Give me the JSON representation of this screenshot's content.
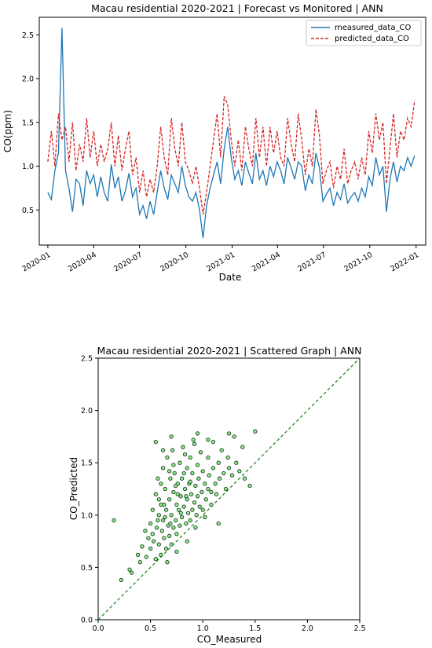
{
  "chart_data": [
    {
      "type": "line",
      "title": "Macau residential 2020-2021 | Forecast vs Monitored | ANN",
      "xlabel": "Date",
      "ylabel": "CO(ppm)",
      "x_range": [
        "2019-12-15",
        "2022-01-20"
      ],
      "ylim": [
        0.1,
        2.7
      ],
      "x_ticks": [
        "2020-01",
        "2020-04",
        "2020-07",
        "2020-10",
        "2021-01",
        "2021-04",
        "2021-07",
        "2021-10",
        "2022-01"
      ],
      "y_ticks": [
        "0.5",
        "1.0",
        "1.5",
        "2.0",
        "2.5"
      ],
      "y_tick_values": [
        0.5,
        1.0,
        1.5,
        2.0,
        2.5
      ],
      "legend_position": "top-right",
      "grid": false,
      "series": [
        {
          "name": "measured_data_CO",
          "color": "#1f77b4",
          "style": "solid",
          "x": [
            "2020-01-01",
            "2020-01-08",
            "2020-01-15",
            "2020-01-22",
            "2020-01-29",
            "2020-02-05",
            "2020-02-12",
            "2020-02-19",
            "2020-02-26",
            "2020-03-04",
            "2020-03-11",
            "2020-03-18",
            "2020-03-25",
            "2020-04-01",
            "2020-04-08",
            "2020-04-15",
            "2020-04-22",
            "2020-04-29",
            "2020-05-06",
            "2020-05-13",
            "2020-05-20",
            "2020-05-27",
            "2020-06-03",
            "2020-06-10",
            "2020-06-17",
            "2020-06-24",
            "2020-07-01",
            "2020-07-08",
            "2020-07-15",
            "2020-07-22",
            "2020-07-29",
            "2020-08-05",
            "2020-08-12",
            "2020-08-19",
            "2020-08-26",
            "2020-09-02",
            "2020-09-09",
            "2020-09-16",
            "2020-09-23",
            "2020-09-30",
            "2020-10-07",
            "2020-10-14",
            "2020-10-21",
            "2020-10-28",
            "2020-11-04",
            "2020-11-11",
            "2020-11-18",
            "2020-11-25",
            "2020-12-02",
            "2020-12-09",
            "2020-12-16",
            "2020-12-23",
            "2020-12-30",
            "2021-01-06",
            "2021-01-13",
            "2021-01-20",
            "2021-01-27",
            "2021-02-03",
            "2021-02-10",
            "2021-02-17",
            "2021-02-24",
            "2021-03-03",
            "2021-03-10",
            "2021-03-17",
            "2021-03-24",
            "2021-03-31",
            "2021-04-07",
            "2021-04-14",
            "2021-04-21",
            "2021-04-28",
            "2021-05-05",
            "2021-05-12",
            "2021-05-19",
            "2021-05-26",
            "2021-06-02",
            "2021-06-09",
            "2021-06-16",
            "2021-06-23",
            "2021-06-30",
            "2021-07-07",
            "2021-07-14",
            "2021-07-21",
            "2021-07-28",
            "2021-08-04",
            "2021-08-11",
            "2021-08-18",
            "2021-08-25",
            "2021-09-01",
            "2021-09-08",
            "2021-09-15",
            "2021-09-22",
            "2021-09-29",
            "2021-10-06",
            "2021-10-13",
            "2021-10-20",
            "2021-10-27",
            "2021-11-03",
            "2021-11-10",
            "2021-11-17",
            "2021-11-24",
            "2021-12-01",
            "2021-12-08",
            "2021-12-15",
            "2021-12-22",
            "2021-12-29"
          ],
          "y": [
            0.7,
            0.62,
            0.95,
            1.15,
            2.58,
            0.95,
            0.75,
            0.48,
            0.85,
            0.8,
            0.55,
            0.95,
            0.8,
            0.9,
            0.65,
            0.88,
            0.7,
            0.6,
            1.02,
            0.75,
            0.88,
            0.6,
            0.72,
            0.92,
            0.65,
            0.75,
            0.45,
            0.55,
            0.4,
            0.6,
            0.45,
            0.7,
            0.95,
            0.75,
            0.62,
            0.9,
            0.8,
            0.7,
            1.0,
            0.78,
            0.65,
            0.6,
            0.7,
            0.5,
            0.18,
            0.55,
            0.75,
            0.9,
            1.05,
            0.8,
            1.2,
            1.45,
            1.1,
            0.85,
            0.95,
            0.78,
            1.05,
            0.92,
            0.8,
            1.15,
            0.85,
            0.95,
            0.78,
            1.0,
            0.88,
            1.05,
            0.95,
            0.8,
            1.1,
            0.98,
            0.85,
            1.05,
            1.0,
            0.72,
            0.9,
            0.8,
            1.15,
            0.98,
            0.6,
            0.68,
            0.75,
            0.55,
            0.7,
            0.62,
            0.8,
            0.58,
            0.65,
            0.7,
            0.6,
            0.75,
            0.65,
            0.88,
            0.78,
            1.1,
            0.9,
            1.0,
            0.48,
            0.85,
            1.05,
            0.82,
            1.0,
            0.95,
            1.1,
            1.0,
            1.12
          ]
        },
        {
          "name": "predicted_data_CO",
          "color": "#d62728",
          "style": "dashed",
          "x": [
            "2020-01-01",
            "2020-01-08",
            "2020-01-15",
            "2020-01-22",
            "2020-01-29",
            "2020-02-05",
            "2020-02-12",
            "2020-02-19",
            "2020-02-26",
            "2020-03-04",
            "2020-03-11",
            "2020-03-18",
            "2020-03-25",
            "2020-04-01",
            "2020-04-08",
            "2020-04-15",
            "2020-04-22",
            "2020-04-29",
            "2020-05-06",
            "2020-05-13",
            "2020-05-20",
            "2020-05-27",
            "2020-06-03",
            "2020-06-10",
            "2020-06-17",
            "2020-06-24",
            "2020-07-01",
            "2020-07-08",
            "2020-07-15",
            "2020-07-22",
            "2020-07-29",
            "2020-08-05",
            "2020-08-12",
            "2020-08-19",
            "2020-08-26",
            "2020-09-02",
            "2020-09-09",
            "2020-09-16",
            "2020-09-23",
            "2020-09-30",
            "2020-10-07",
            "2020-10-14",
            "2020-10-21",
            "2020-10-28",
            "2020-11-04",
            "2020-11-11",
            "2020-11-18",
            "2020-11-25",
            "2020-12-02",
            "2020-12-09",
            "2020-12-16",
            "2020-12-23",
            "2020-12-30",
            "2021-01-06",
            "2021-01-13",
            "2021-01-20",
            "2021-01-27",
            "2021-02-03",
            "2021-02-10",
            "2021-02-17",
            "2021-02-24",
            "2021-03-03",
            "2021-03-10",
            "2021-03-17",
            "2021-03-24",
            "2021-03-31",
            "2021-04-07",
            "2021-04-14",
            "2021-04-21",
            "2021-04-28",
            "2021-05-05",
            "2021-05-12",
            "2021-05-19",
            "2021-05-26",
            "2021-06-02",
            "2021-06-09",
            "2021-06-16",
            "2021-06-23",
            "2021-06-30",
            "2021-07-07",
            "2021-07-14",
            "2021-07-21",
            "2021-07-28",
            "2021-08-04",
            "2021-08-11",
            "2021-08-18",
            "2021-08-25",
            "2021-09-01",
            "2021-09-08",
            "2021-09-15",
            "2021-09-22",
            "2021-09-29",
            "2021-10-06",
            "2021-10-13",
            "2021-10-20",
            "2021-10-27",
            "2021-11-03",
            "2021-11-10",
            "2021-11-17",
            "2021-11-24",
            "2021-12-01",
            "2021-12-08",
            "2021-12-15",
            "2021-12-22",
            "2021-12-29"
          ],
          "y": [
            1.05,
            1.4,
            1.0,
            1.6,
            1.3,
            1.45,
            1.05,
            1.5,
            0.95,
            1.25,
            1.05,
            1.55,
            1.1,
            1.4,
            1.0,
            1.25,
            1.05,
            1.2,
            1.5,
            1.0,
            1.35,
            0.95,
            1.2,
            1.4,
            0.9,
            1.1,
            0.7,
            0.95,
            0.65,
            0.85,
            0.7,
            1.0,
            1.45,
            1.1,
            0.9,
            1.55,
            1.2,
            1.0,
            1.5,
            1.05,
            0.95,
            0.8,
            1.0,
            0.75,
            0.45,
            0.7,
            1.0,
            1.3,
            1.6,
            1.1,
            1.8,
            1.7,
            1.3,
            1.0,
            1.3,
            0.95,
            1.45,
            1.2,
            1.0,
            1.55,
            1.1,
            1.45,
            1.0,
            1.45,
            1.15,
            1.4,
            1.1,
            1.0,
            1.55,
            1.25,
            1.05,
            1.6,
            1.3,
            0.9,
            1.2,
            1.0,
            1.65,
            1.35,
            0.8,
            0.95,
            1.05,
            0.75,
            1.0,
            0.85,
            1.2,
            0.8,
            0.95,
            1.05,
            0.85,
            1.1,
            0.9,
            1.4,
            1.15,
            1.6,
            1.3,
            1.5,
            0.8,
            1.2,
            1.6,
            1.1,
            1.4,
            1.3,
            1.55,
            1.45,
            1.75
          ]
        }
      ]
    },
    {
      "type": "scatter",
      "title": "Macau residential 2020-2021 | Scattered Graph | ANN",
      "xlabel": "CO_Measured",
      "ylabel": "CO_Predicted",
      "xlim": [
        0.0,
        2.5
      ],
      "ylim": [
        0.0,
        2.5
      ],
      "x_ticks": [
        "0.0",
        "0.5",
        "1.0",
        "1.5",
        "2.0",
        "2.5"
      ],
      "y_ticks": [
        "0.0",
        "0.5",
        "1.0",
        "1.5",
        "2.0",
        "2.5"
      ],
      "tick_values": [
        0,
        0.5,
        1.0,
        1.5,
        2.0,
        2.5
      ],
      "grid": false,
      "reference_line": {
        "from": [
          0,
          0
        ],
        "to": [
          2.5,
          2.5
        ],
        "color": "#228b22",
        "style": "dashed"
      },
      "point_color": "#90ee90",
      "point_edge": "#1a3d1a",
      "points": [
        [
          0.15,
          0.95
        ],
        [
          0.22,
          0.38
        ],
        [
          0.3,
          0.48
        ],
        [
          0.32,
          0.45
        ],
        [
          0.38,
          0.62
        ],
        [
          0.4,
          0.55
        ],
        [
          0.42,
          0.7
        ],
        [
          0.45,
          0.85
        ],
        [
          0.46,
          0.6
        ],
        [
          0.48,
          0.78
        ],
        [
          0.5,
          0.92
        ],
        [
          0.5,
          0.68
        ],
        [
          0.52,
          1.05
        ],
        [
          0.53,
          0.75
        ],
        [
          0.55,
          0.58
        ],
        [
          0.55,
          1.2
        ],
        [
          0.56,
          0.88
        ],
        [
          0.57,
          1.35
        ],
        [
          0.58,
          0.72
        ],
        [
          0.58,
          1.0
        ],
        [
          0.6,
          0.62
        ],
        [
          0.6,
          1.1
        ],
        [
          0.61,
          0.85
        ],
        [
          0.62,
          1.45
        ],
        [
          0.62,
          0.95
        ],
        [
          0.63,
          0.78
        ],
        [
          0.64,
          1.25
        ],
        [
          0.65,
          0.68
        ],
        [
          0.65,
          1.05
        ],
        [
          0.66,
          1.55
        ],
        [
          0.67,
          0.9
        ],
        [
          0.68,
          1.15
        ],
        [
          0.68,
          0.8
        ],
        [
          0.69,
          1.35
        ],
        [
          0.7,
          0.72
        ],
        [
          0.7,
          1.0
        ],
        [
          0.71,
          1.62
        ],
        [
          0.72,
          0.88
        ],
        [
          0.72,
          1.22
        ],
        [
          0.73,
          1.4
        ],
        [
          0.74,
          0.95
        ],
        [
          0.75,
          1.1
        ],
        [
          0.75,
          0.82
        ],
        [
          0.76,
          1.3
        ],
        [
          0.77,
          1.05
        ],
        [
          0.78,
          1.5
        ],
        [
          0.78,
          0.9
        ],
        [
          0.79,
          1.18
        ],
        [
          0.8,
          1.35
        ],
        [
          0.8,
          0.98
        ],
        [
          0.81,
          1.65
        ],
        [
          0.82,
          1.08
        ],
        [
          0.83,
          1.25
        ],
        [
          0.84,
          0.92
        ],
        [
          0.85,
          1.45
        ],
        [
          0.85,
          1.15
        ],
        [
          0.86,
          1.02
        ],
        [
          0.87,
          1.3
        ],
        [
          0.88,
          1.55
        ],
        [
          0.88,
          0.95
        ],
        [
          0.89,
          1.2
        ],
        [
          0.9,
          1.4
        ],
        [
          0.9,
          1.05
        ],
        [
          0.91,
          1.72
        ],
        [
          0.92,
          1.12
        ],
        [
          0.93,
          1.28
        ],
        [
          0.94,
          1.0
        ],
        [
          0.95,
          1.48
        ],
        [
          0.95,
          1.18
        ],
        [
          0.96,
          1.35
        ],
        [
          0.97,
          1.08
        ],
        [
          0.98,
          1.6
        ],
        [
          0.99,
          1.22
        ],
        [
          1.0,
          1.42
        ],
        [
          1.0,
          1.05
        ],
        [
          1.02,
          1.3
        ],
        [
          1.03,
          1.15
        ],
        [
          1.05,
          1.55
        ],
        [
          1.05,
          1.25
        ],
        [
          1.06,
          1.38
        ],
        [
          1.08,
          1.1
        ],
        [
          1.1,
          1.45
        ],
        [
          1.1,
          1.7
        ],
        [
          1.12,
          1.3
        ],
        [
          1.13,
          1.2
        ],
        [
          1.15,
          1.5
        ],
        [
          1.16,
          1.35
        ],
        [
          1.18,
          1.62
        ],
        [
          1.2,
          1.4
        ],
        [
          1.22,
          1.25
        ],
        [
          1.24,
          1.55
        ],
        [
          1.25,
          1.45
        ],
        [
          1.28,
          1.38
        ],
        [
          1.3,
          1.75
        ],
        [
          1.32,
          1.5
        ],
        [
          1.35,
          1.42
        ],
        [
          1.38,
          1.65
        ],
        [
          1.4,
          1.35
        ],
        [
          1.45,
          1.28
        ],
        [
          1.5,
          1.8
        ],
        [
          0.55,
          1.7
        ],
        [
          0.62,
          1.62
        ],
        [
          0.7,
          1.75
        ],
        [
          0.95,
          1.78
        ],
        [
          1.05,
          1.72
        ],
        [
          1.25,
          1.78
        ],
        [
          0.66,
          0.55
        ],
        [
          0.75,
          0.65
        ],
        [
          0.85,
          0.75
        ],
        [
          1.15,
          0.92
        ],
        [
          0.72,
          1.48
        ],
        [
          0.83,
          1.58
        ],
        [
          0.92,
          1.68
        ],
        [
          0.6,
          1.3
        ],
        [
          0.68,
          1.42
        ],
        [
          0.76,
          1.2
        ],
        [
          0.58,
          1.15
        ],
        [
          0.64,
          0.98
        ],
        [
          0.82,
          1.4
        ],
        [
          0.88,
          1.32
        ],
        [
          0.52,
          0.82
        ],
        [
          0.57,
          0.95
        ],
        [
          0.63,
          1.1
        ],
        [
          0.69,
          0.92
        ],
        [
          0.74,
          1.28
        ],
        [
          0.79,
          1.02
        ],
        [
          0.84,
          1.18
        ],
        [
          0.93,
          0.88
        ],
        [
          1.02,
          0.98
        ],
        [
          1.08,
          1.22
        ]
      ]
    }
  ]
}
